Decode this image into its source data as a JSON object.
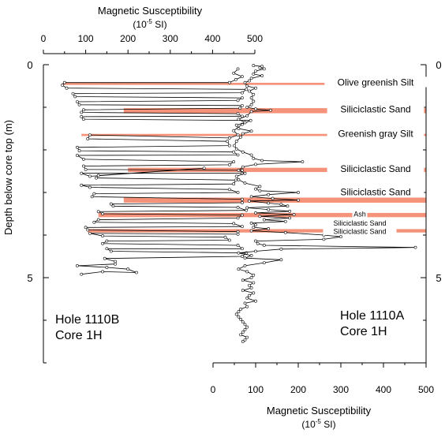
{
  "chart_data": {
    "type": "line",
    "top_axis": {
      "label": "Magnetic Susceptibility",
      "unit": "(10",
      "unit_exp": "-5",
      "unit_tail": " SI)",
      "ticks": [
        0,
        100,
        200,
        300,
        400,
        500
      ],
      "xlim": [
        0,
        500
      ]
    },
    "bottom_axis": {
      "label": "Magnetic Susceptibility",
      "unit": "(10",
      "unit_exp": "-5",
      "unit_tail": " SI)",
      "ticks": [
        0,
        100,
        200,
        300,
        400,
        500
      ],
      "xlim": [
        0,
        500
      ]
    },
    "y_axis": {
      "label": "Depth below core top (m)",
      "ticks": [
        0,
        5
      ],
      "ylim": [
        0,
        7
      ]
    },
    "series": [
      {
        "name": "Hole 1110B Core 1H",
        "axis": "top",
        "points": [
          [
            460,
            0.1
          ],
          [
            450,
            0.2
          ],
          [
            470,
            0.28
          ],
          [
            455,
            0.35
          ],
          [
            440,
            0.42
          ],
          [
            50,
            0.42
          ],
          [
            45,
            0.48
          ],
          [
            55,
            0.55
          ],
          [
            480,
            0.58
          ],
          [
            470,
            0.66
          ],
          [
            70,
            0.68
          ],
          [
            75,
            0.75
          ],
          [
            470,
            0.78
          ],
          [
            460,
            0.84
          ],
          [
            80,
            0.87
          ],
          [
            85,
            0.94
          ],
          [
            470,
            0.96
          ],
          [
            465,
            1.02
          ],
          [
            95,
            1.06
          ],
          [
            90,
            1.12
          ],
          [
            460,
            1.15
          ],
          [
            470,
            1.21
          ],
          [
            90,
            1.22
          ],
          [
            95,
            1.28
          ],
          [
            490,
            1.31
          ],
          [
            470,
            1.4
          ],
          [
            450,
            1.55
          ],
          [
            460,
            1.65
          ],
          [
            440,
            1.72
          ],
          [
            110,
            1.65
          ],
          [
            105,
            1.74
          ],
          [
            435,
            1.8
          ],
          [
            440,
            1.9
          ],
          [
            80,
            1.94
          ],
          [
            85,
            2.02
          ],
          [
            450,
            2.05
          ],
          [
            460,
            2.12
          ],
          [
            80,
            2.13
          ],
          [
            95,
            2.22
          ],
          [
            450,
            2.28
          ],
          [
            440,
            2.35
          ],
          [
            95,
            2.38
          ],
          [
            100,
            2.46
          ],
          [
            470,
            2.48
          ],
          [
            470,
            2.55
          ],
          [
            90,
            2.55
          ],
          [
            110,
            2.62
          ],
          [
            380,
            2.43
          ],
          [
            130,
            2.6
          ],
          [
            125,
            2.66
          ],
          [
            455,
            2.71
          ],
          [
            450,
            2.8
          ],
          [
            90,
            2.83
          ],
          [
            110,
            2.88
          ],
          [
            440,
            2.93
          ],
          [
            460,
            3.0
          ],
          [
            120,
            3.03
          ],
          [
            115,
            3.1
          ],
          [
            470,
            3.16
          ],
          [
            470,
            3.24
          ],
          [
            160,
            3.27
          ],
          [
            165,
            3.32
          ],
          [
            460,
            3.35
          ],
          [
            480,
            3.42
          ],
          [
            130,
            3.45
          ],
          [
            140,
            3.5
          ],
          [
            470,
            3.53
          ],
          [
            460,
            3.6
          ],
          [
            130,
            3.64
          ],
          [
            120,
            3.7
          ],
          [
            450,
            3.73
          ],
          [
            470,
            3.8
          ],
          [
            100,
            3.82
          ],
          [
            105,
            3.88
          ],
          [
            460,
            3.92
          ],
          [
            460,
            3.98
          ],
          [
            110,
            3.96
          ],
          [
            140,
            4.02
          ],
          [
            430,
            4.05
          ],
          [
            440,
            4.12
          ],
          [
            150,
            4.14
          ],
          [
            140,
            4.2
          ],
          [
            460,
            4.24
          ],
          [
            470,
            4.32
          ],
          [
            150,
            4.32
          ],
          [
            160,
            4.38
          ],
          [
            480,
            4.42
          ],
          [
            470,
            4.5
          ],
          [
            145,
            4.55
          ],
          [
            170,
            4.62
          ],
          [
            170,
            4.68
          ],
          [
            80,
            4.72
          ],
          [
            150,
            4.76
          ],
          [
            200,
            4.8
          ],
          [
            220,
            4.88
          ],
          [
            140,
            4.86
          ],
          [
            90,
            4.92
          ]
        ]
      },
      {
        "name": "Hole 1110A Core 1H",
        "axis": "bottom",
        "points": [
          [
            95,
            0.02
          ],
          [
            115,
            0.04
          ],
          [
            110,
            0.07
          ],
          [
            120,
            0.1
          ],
          [
            100,
            0.15
          ],
          [
            95,
            0.22
          ],
          [
            115,
            0.26
          ],
          [
            90,
            0.32
          ],
          [
            85,
            0.38
          ],
          [
            75,
            0.42
          ],
          [
            80,
            0.5
          ],
          [
            100,
            0.55
          ],
          [
            85,
            0.62
          ],
          [
            95,
            0.7
          ],
          [
            90,
            0.78
          ],
          [
            95,
            0.86
          ],
          [
            90,
            0.94
          ],
          [
            80,
            1.0
          ],
          [
            100,
            1.04
          ],
          [
            135,
            1.07
          ],
          [
            90,
            1.1
          ],
          [
            80,
            1.2
          ],
          [
            60,
            1.28
          ],
          [
            75,
            1.36
          ],
          [
            55,
            1.42
          ],
          [
            60,
            1.5
          ],
          [
            90,
            1.56
          ],
          [
            70,
            1.62
          ],
          [
            65,
            1.7
          ],
          [
            55,
            1.8
          ],
          [
            50,
            1.9
          ],
          [
            55,
            1.98
          ],
          [
            70,
            2.05
          ],
          [
            90,
            2.12
          ],
          [
            95,
            2.2
          ],
          [
            115,
            2.25
          ],
          [
            210,
            2.28
          ],
          [
            100,
            2.34
          ],
          [
            70,
            2.4
          ],
          [
            60,
            2.48
          ],
          [
            75,
            2.55
          ],
          [
            55,
            2.62
          ],
          [
            60,
            2.7
          ],
          [
            75,
            2.78
          ],
          [
            110,
            2.86
          ],
          [
            100,
            2.92
          ],
          [
            110,
            2.96
          ],
          [
            200,
            3.0
          ],
          [
            130,
            3.05
          ],
          [
            90,
            3.1
          ],
          [
            140,
            3.14
          ],
          [
            200,
            3.18
          ],
          [
            85,
            3.2
          ],
          [
            130,
            3.25
          ],
          [
            160,
            3.28
          ],
          [
            175,
            3.32
          ],
          [
            80,
            3.36
          ],
          [
            130,
            3.4
          ],
          [
            180,
            3.44
          ],
          [
            100,
            3.48
          ],
          [
            190,
            3.52
          ],
          [
            110,
            3.56
          ],
          [
            180,
            3.6
          ],
          [
            120,
            3.64
          ],
          [
            170,
            3.68
          ],
          [
            90,
            3.72
          ],
          [
            100,
            3.76
          ],
          [
            95,
            3.82
          ],
          [
            130,
            3.85
          ],
          [
            90,
            3.9
          ],
          [
            170,
            3.94
          ],
          [
            260,
            4.0
          ],
          [
            300,
            4.04
          ],
          [
            260,
            4.1
          ],
          [
            100,
            4.14
          ],
          [
            105,
            4.2
          ],
          [
            120,
            4.24
          ],
          [
            475,
            4.29
          ],
          [
            160,
            4.33
          ],
          [
            100,
            4.38
          ],
          [
            60,
            4.42
          ],
          [
            90,
            4.48
          ],
          [
            75,
            4.54
          ],
          [
            160,
            4.58
          ],
          [
            120,
            4.65
          ],
          [
            75,
            4.72
          ],
          [
            60,
            4.8
          ],
          [
            80,
            4.86
          ],
          [
            95,
            4.94
          ],
          [
            90,
            5.0
          ],
          [
            70,
            5.06
          ],
          [
            95,
            5.12
          ],
          [
            85,
            5.18
          ],
          [
            90,
            5.24
          ],
          [
            70,
            5.3
          ],
          [
            95,
            5.36
          ],
          [
            85,
            5.42
          ],
          [
            80,
            5.48
          ],
          [
            100,
            5.55
          ],
          [
            75,
            5.6
          ],
          [
            80,
            5.68
          ],
          [
            65,
            5.74
          ],
          [
            60,
            5.8
          ],
          [
            55,
            5.86
          ],
          [
            60,
            5.92
          ],
          [
            65,
            5.98
          ],
          [
            70,
            6.04
          ],
          [
            75,
            6.1
          ],
          [
            80,
            6.16
          ],
          [
            75,
            6.22
          ],
          [
            70,
            6.28
          ],
          [
            65,
            6.34
          ],
          [
            80,
            6.4
          ],
          [
            75,
            6.46
          ],
          [
            70,
            6.5
          ]
        ]
      }
    ],
    "bands": [
      {
        "depth": 0.45,
        "x_from": 45,
        "x_to": 500,
        "thickness": 0.05
      },
      {
        "depth": 1.08,
        "x_from": 190,
        "x_to": 500,
        "thickness": 0.12
      },
      {
        "depth": 1.65,
        "x_from": 90,
        "x_to": 500,
        "thickness": 0.05
      },
      {
        "depth": 2.47,
        "x_from": 200,
        "x_to": 500,
        "thickness": 0.1
      },
      {
        "depth": 3.18,
        "x_from": 190,
        "x_to": 500,
        "thickness": 0.12
      },
      {
        "depth": 3.53,
        "x_from": 130,
        "x_to": 500,
        "thickness": 0.1
      },
      {
        "depth": 3.9,
        "x_from": 105,
        "x_to": 500,
        "thickness": 0.08
      }
    ],
    "annotations": [
      {
        "text": "Olive greenish Silt",
        "size": "large",
        "depth": 0.45
      },
      {
        "text": "Siliciclastic Sand",
        "size": "large",
        "depth": 1.08
      },
      {
        "text": "Greenish gray Silt",
        "size": "large",
        "depth": 1.65
      },
      {
        "text": "Siliciclastic Sand",
        "size": "large",
        "depth": 2.47
      },
      {
        "text": "Siliciclastic Sand",
        "size": "large",
        "depth": 3.02
      },
      {
        "text": "Ash",
        "size": "small",
        "depth": 3.53
      },
      {
        "text": "Siliciclastic Sand",
        "size": "small",
        "depth": 3.74
      },
      {
        "text": "Siliciclastic Sand",
        "size": "small",
        "depth": 3.94
      }
    ],
    "labels": [
      {
        "line1": "Hole 1110B",
        "line2": "Core 1H"
      },
      {
        "line1": "Hole 1110A",
        "line2": "Core 1H"
      }
    ]
  }
}
